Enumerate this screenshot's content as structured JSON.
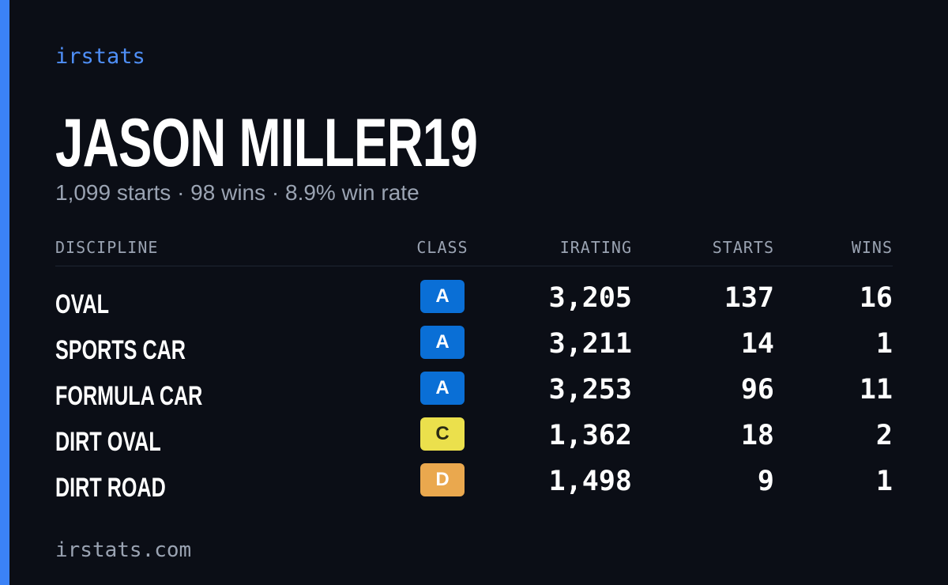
{
  "brand": "irstats",
  "driver": {
    "name": "JASON MILLER19",
    "summary": "1,099 starts · 98 wins · 8.9% win rate"
  },
  "table": {
    "headers": [
      "DISCIPLINE",
      "CLASS",
      "IRATING",
      "STARTS",
      "WINS"
    ],
    "rows": [
      {
        "discipline": "OVAL",
        "class": "A",
        "badge_color": "#0a6fd6",
        "badge_text_color": "#ffffff",
        "irating": "3,205",
        "starts": "137",
        "wins": "16"
      },
      {
        "discipline": "SPORTS CAR",
        "class": "A",
        "badge_color": "#0a6fd6",
        "badge_text_color": "#ffffff",
        "irating": "3,211",
        "starts": "14",
        "wins": "1"
      },
      {
        "discipline": "FORMULA CAR",
        "class": "A",
        "badge_color": "#0a6fd6",
        "badge_text_color": "#ffffff",
        "irating": "3,253",
        "starts": "96",
        "wins": "11"
      },
      {
        "discipline": "DIRT OVAL",
        "class": "C",
        "badge_color": "#ebe04c",
        "badge_text_color": "#2a2a14",
        "irating": "1,362",
        "starts": "18",
        "wins": "2"
      },
      {
        "discipline": "DIRT ROAD",
        "class": "D",
        "badge_color": "#eaa84e",
        "badge_text_color": "#ffffff",
        "irating": "1,498",
        "starts": "9",
        "wins": "1"
      }
    ]
  },
  "footer": "irstats.com"
}
